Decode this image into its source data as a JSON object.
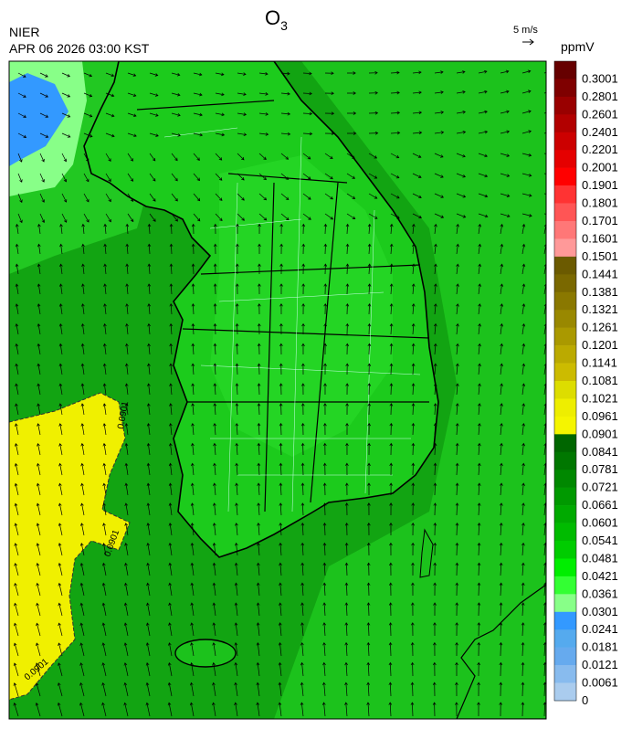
{
  "header": {
    "title": {
      "main": "O",
      "subscript": "3"
    },
    "agency": "NIER",
    "timestamp": "APR 06 2026 03:00 KST"
  },
  "wind_reference": {
    "label": "5 m/s"
  },
  "map": {
    "contour_label": "0.0901"
  },
  "legend": {
    "unit": "ppmV",
    "entries": [
      {
        "label": "0.3001",
        "color": "#660000"
      },
      {
        "label": "0.2801",
        "color": "#7f0000"
      },
      {
        "label": "0.2601",
        "color": "#990000"
      },
      {
        "label": "0.2401",
        "color": "#b20000"
      },
      {
        "label": "0.2201",
        "color": "#cc0000"
      },
      {
        "label": "0.2001",
        "color": "#e50000"
      },
      {
        "label": "0.1901",
        "color": "#ff0000"
      },
      {
        "label": "0.1801",
        "color": "#ff3333"
      },
      {
        "label": "0.1701",
        "color": "#ff5555"
      },
      {
        "label": "0.1601",
        "color": "#ff7777"
      },
      {
        "label": "0.1501",
        "color": "#ff9999"
      },
      {
        "label": "0.1441",
        "color": "#6b5a00"
      },
      {
        "label": "0.1381",
        "color": "#7a6800"
      },
      {
        "label": "0.1321",
        "color": "#8a7800"
      },
      {
        "label": "0.1261",
        "color": "#998800"
      },
      {
        "label": "0.1201",
        "color": "#aa9900"
      },
      {
        "label": "0.1141",
        "color": "#bbaa00"
      },
      {
        "label": "0.1081",
        "color": "#ccbb00"
      },
      {
        "label": "0.1021",
        "color": "#dddd00"
      },
      {
        "label": "0.0961",
        "color": "#eeee00"
      },
      {
        "label": "0.0901",
        "color": "#f5f500"
      },
      {
        "label": "0.0841",
        "color": "#006600"
      },
      {
        "label": "0.0781",
        "color": "#007700"
      },
      {
        "label": "0.0721",
        "color": "#008800"
      },
      {
        "label": "0.0661",
        "color": "#009900"
      },
      {
        "label": "0.0601",
        "color": "#00aa00"
      },
      {
        "label": "0.0541",
        "color": "#00bb00"
      },
      {
        "label": "0.0481",
        "color": "#00cc00"
      },
      {
        "label": "0.0421",
        "color": "#00ee00"
      },
      {
        "label": "0.0361",
        "color": "#33ff33"
      },
      {
        "label": "0.0301",
        "color": "#88ff88"
      },
      {
        "label": "0.0241",
        "color": "#3399ff"
      },
      {
        "label": "0.0181",
        "color": "#55aaee"
      },
      {
        "label": "0.0121",
        "color": "#66aaee"
      },
      {
        "label": "0.0061",
        "color": "#88bbee"
      },
      {
        "label": "0",
        "color": "#aaccee"
      }
    ]
  }
}
